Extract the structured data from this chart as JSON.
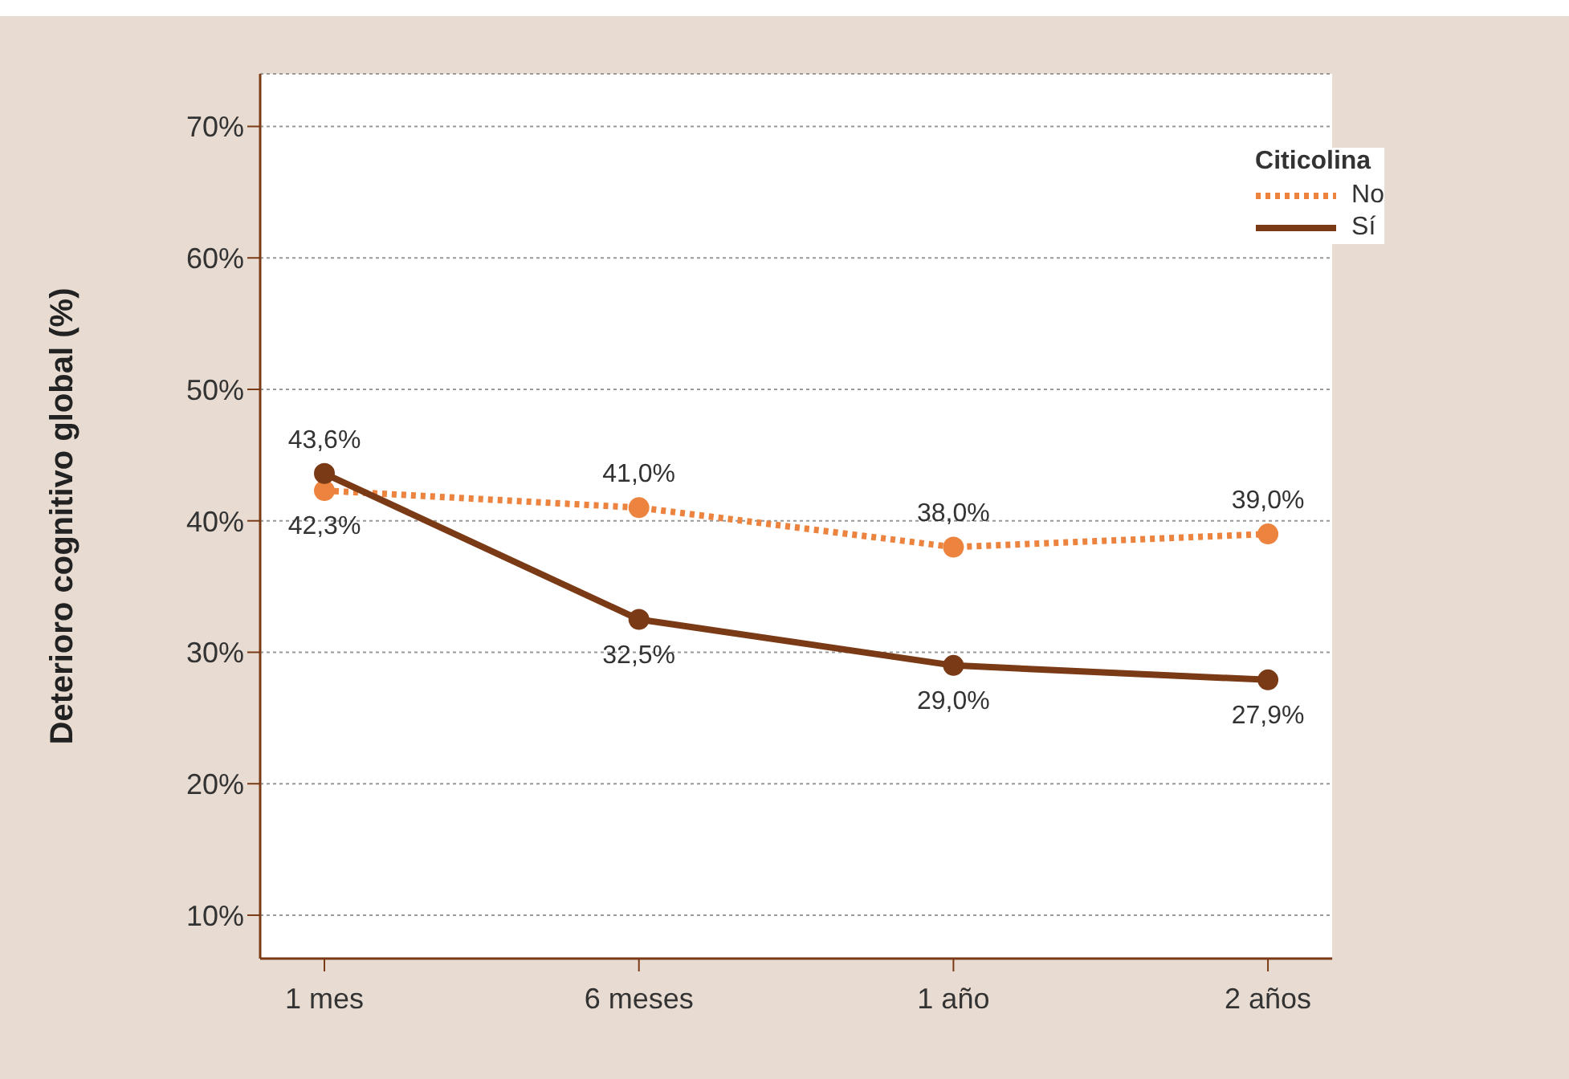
{
  "chart_data": {
    "type": "line",
    "ylabel": "Deterioro cognitivo global (%)",
    "legend_title": "Citicolina",
    "categories": [
      "1 mes",
      "6 meses",
      "1 año",
      "2 años"
    ],
    "series": [
      {
        "name": "No",
        "color": "#ec8440",
        "line_style": "dotted",
        "values": [
          42.3,
          41.0,
          38.0,
          39.0
        ],
        "value_labels": [
          "42,3%",
          "41,0%",
          "38,0%",
          "39,0%"
        ]
      },
      {
        "name": "Sí",
        "color": "#7b3a16",
        "line_style": "solid",
        "values": [
          43.6,
          32.5,
          29.0,
          27.9
        ],
        "value_labels": [
          "43,6%",
          "32,5%",
          "29,0%",
          "27,9%"
        ]
      }
    ],
    "ylim": [
      6.7,
      74
    ],
    "yticks": [
      {
        "value": 10,
        "label": "10%"
      },
      {
        "value": 20,
        "label": "20%"
      },
      {
        "value": 30,
        "label": "30%"
      },
      {
        "value": 40,
        "label": "40%"
      },
      {
        "value": 50,
        "label": "50%"
      },
      {
        "value": 60,
        "label": "60%"
      },
      {
        "value": 70,
        "label": "70%"
      }
    ],
    "grid": "y",
    "legend": "top right",
    "marker": "circle"
  }
}
